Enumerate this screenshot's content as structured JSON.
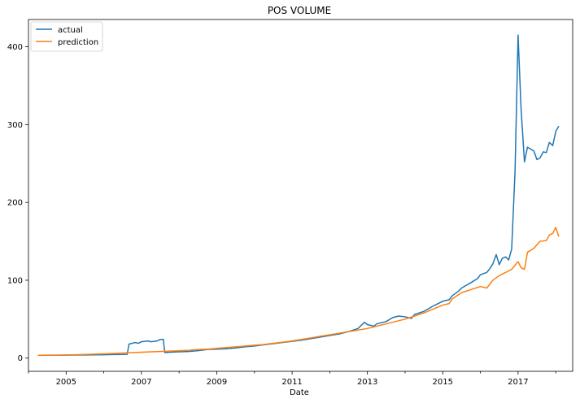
{
  "chart_data": {
    "type": "line",
    "title": "POS VOLUME",
    "xlabel": "Date",
    "ylabel": "",
    "xlim": [
      2004.0,
      2018.45
    ],
    "ylim": [
      -17,
      435
    ],
    "x_ticks": [
      2005,
      2007,
      2009,
      2011,
      2013,
      2015,
      2017
    ],
    "x_tick_labels": [
      "2005",
      "2007",
      "2009",
      "2011",
      "2013",
      "2015",
      "2017"
    ],
    "y_ticks": [
      0,
      100,
      200,
      300,
      400
    ],
    "y_tick_labels": [
      "0",
      "100",
      "200",
      "300",
      "400"
    ],
    "grid": false,
    "legend_position": "upper-left",
    "series": [
      {
        "name": "actual",
        "color": "#1f77b4",
        "points": [
          [
            2004.25,
            3.5
          ],
          [
            2004.5,
            3.6
          ],
          [
            2004.75,
            3.7
          ],
          [
            2005.0,
            3.8
          ],
          [
            2005.25,
            3.9
          ],
          [
            2005.5,
            4.0
          ],
          [
            2005.75,
            4.1
          ],
          [
            2006.0,
            4.3
          ],
          [
            2006.25,
            4.5
          ],
          [
            2006.5,
            4.6
          ],
          [
            2006.62,
            4.8
          ],
          [
            2006.67,
            18
          ],
          [
            2006.83,
            20
          ],
          [
            2006.92,
            19
          ],
          [
            2007.0,
            21
          ],
          [
            2007.17,
            22
          ],
          [
            2007.25,
            21
          ],
          [
            2007.42,
            22
          ],
          [
            2007.5,
            24
          ],
          [
            2007.58,
            24
          ],
          [
            2007.62,
            7
          ],
          [
            2007.75,
            7.5
          ],
          [
            2008.0,
            8
          ],
          [
            2008.25,
            8.5
          ],
          [
            2008.5,
            9.5
          ],
          [
            2008.75,
            11
          ],
          [
            2009.0,
            11.5
          ],
          [
            2009.25,
            12
          ],
          [
            2009.5,
            13
          ],
          [
            2009.75,
            14.5
          ],
          [
            2010.0,
            15.5
          ],
          [
            2010.25,
            17
          ],
          [
            2010.5,
            18.5
          ],
          [
            2010.75,
            20
          ],
          [
            2011.0,
            21.5
          ],
          [
            2011.25,
            23
          ],
          [
            2011.5,
            25
          ],
          [
            2011.75,
            27
          ],
          [
            2012.0,
            29
          ],
          [
            2012.25,
            31
          ],
          [
            2012.5,
            34
          ],
          [
            2012.75,
            38
          ],
          [
            2012.92,
            46
          ],
          [
            2013.0,
            43
          ],
          [
            2013.17,
            41
          ],
          [
            2013.25,
            44
          ],
          [
            2013.5,
            47
          ],
          [
            2013.67,
            52
          ],
          [
            2013.83,
            54
          ],
          [
            2014.0,
            53
          ],
          [
            2014.17,
            51
          ],
          [
            2014.25,
            56
          ],
          [
            2014.5,
            60
          ],
          [
            2014.75,
            67
          ],
          [
            2015.0,
            73
          ],
          [
            2015.17,
            75
          ],
          [
            2015.25,
            80
          ],
          [
            2015.42,
            86
          ],
          [
            2015.5,
            90
          ],
          [
            2015.75,
            97
          ],
          [
            2015.92,
            102
          ],
          [
            2016.0,
            107
          ],
          [
            2016.17,
            110
          ],
          [
            2016.25,
            115
          ],
          [
            2016.33,
            121
          ],
          [
            2016.42,
            133
          ],
          [
            2016.5,
            120
          ],
          [
            2016.58,
            128
          ],
          [
            2016.67,
            130
          ],
          [
            2016.75,
            126
          ],
          [
            2016.83,
            140
          ],
          [
            2016.92,
            240
          ],
          [
            2017.0,
            415
          ],
          [
            2017.08,
            320
          ],
          [
            2017.17,
            252
          ],
          [
            2017.25,
            271
          ],
          [
            2017.42,
            266
          ],
          [
            2017.5,
            255
          ],
          [
            2017.58,
            257
          ],
          [
            2017.67,
            265
          ],
          [
            2017.75,
            264
          ],
          [
            2017.83,
            277
          ],
          [
            2017.92,
            273
          ],
          [
            2018.0,
            291
          ],
          [
            2018.08,
            298
          ]
        ]
      },
      {
        "name": "prediction",
        "color": "#ff7f0e",
        "points": [
          [
            2004.25,
            3.6
          ],
          [
            2004.5,
            3.7
          ],
          [
            2004.75,
            3.8
          ],
          [
            2005.0,
            4.0
          ],
          [
            2005.25,
            4.3
          ],
          [
            2005.5,
            4.6
          ],
          [
            2005.75,
            5.0
          ],
          [
            2006.0,
            5.4
          ],
          [
            2006.25,
            6.0
          ],
          [
            2006.5,
            6.5
          ],
          [
            2006.75,
            7.0
          ],
          [
            2007.0,
            7.5
          ],
          [
            2007.25,
            8.0
          ],
          [
            2007.5,
            8.5
          ],
          [
            2007.75,
            9.0
          ],
          [
            2008.0,
            9.5
          ],
          [
            2008.25,
            10
          ],
          [
            2008.5,
            11
          ],
          [
            2008.75,
            11.5
          ],
          [
            2009.0,
            12.5
          ],
          [
            2009.25,
            13.5
          ],
          [
            2009.5,
            14.5
          ],
          [
            2009.75,
            15.5
          ],
          [
            2010.0,
            16.5
          ],
          [
            2010.25,
            17.5
          ],
          [
            2010.5,
            19
          ],
          [
            2010.75,
            20.5
          ],
          [
            2011.0,
            22
          ],
          [
            2011.25,
            24
          ],
          [
            2011.5,
            26
          ],
          [
            2011.75,
            28
          ],
          [
            2012.0,
            30
          ],
          [
            2012.25,
            32
          ],
          [
            2012.5,
            34
          ],
          [
            2012.75,
            36
          ],
          [
            2013.0,
            38
          ],
          [
            2013.25,
            41
          ],
          [
            2013.5,
            44
          ],
          [
            2013.75,
            47
          ],
          [
            2014.0,
            50
          ],
          [
            2014.25,
            54
          ],
          [
            2014.5,
            58
          ],
          [
            2014.75,
            63
          ],
          [
            2015.0,
            68
          ],
          [
            2015.17,
            70
          ],
          [
            2015.25,
            76
          ],
          [
            2015.5,
            84
          ],
          [
            2015.75,
            88
          ],
          [
            2016.0,
            92
          ],
          [
            2016.17,
            90
          ],
          [
            2016.33,
            100
          ],
          [
            2016.5,
            106
          ],
          [
            2016.67,
            110
          ],
          [
            2016.83,
            114
          ],
          [
            2017.0,
            124
          ],
          [
            2017.08,
            116
          ],
          [
            2017.17,
            114
          ],
          [
            2017.25,
            136
          ],
          [
            2017.42,
            141
          ],
          [
            2017.58,
            150
          ],
          [
            2017.75,
            151
          ],
          [
            2017.83,
            158
          ],
          [
            2017.92,
            160
          ],
          [
            2018.0,
            168
          ],
          [
            2018.08,
            156
          ]
        ]
      }
    ]
  }
}
